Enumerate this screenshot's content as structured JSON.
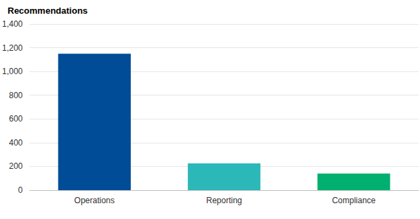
{
  "chart_data": {
    "type": "bar",
    "title": "Recommendations",
    "categories": [
      "Operations",
      "Reporting",
      "Compliance"
    ],
    "values": [
      1150,
      225,
      140
    ],
    "colors": [
      "#004c97",
      "#2cb8b8",
      "#00b070"
    ],
    "ylim": [
      0,
      1400
    ],
    "yticks": [
      0,
      200,
      400,
      600,
      800,
      {
        "value": 1000,
        "label": "1,000"
      },
      {
        "value": 1200,
        "label": "1,200"
      },
      {
        "value": 1400,
        "label": "1,400"
      }
    ],
    "grid": true
  }
}
